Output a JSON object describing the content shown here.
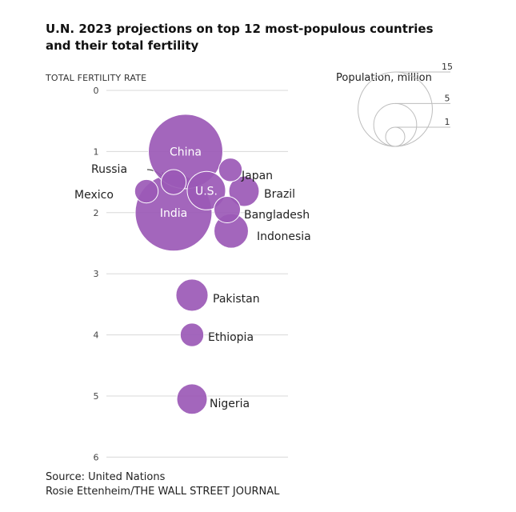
{
  "title": "U.N. 2023 projections on top 12 most-populous countries and their total fertility",
  "footer": {
    "source": "Source: United Nations",
    "credit": "Rosie Ettenheim/THE WALL STREET JOURNAL"
  },
  "chart_data": {
    "type": "scatter",
    "ylabel": "TOTAL FERTILITY RATE",
    "ylim": [
      0,
      6
    ],
    "yticks": [
      "0",
      "1",
      "2",
      "3",
      "4",
      "5",
      "6"
    ],
    "y_inverted": true,
    "grid": true,
    "bubble_color": "#9b59b6",
    "legend": {
      "title": "Population, million",
      "values": [
        15,
        5,
        1
      ],
      "labels": [
        "15",
        "5",
        "1"
      ]
    },
    "points": [
      {
        "country": "China",
        "fertility": 1.0,
        "size": 15.0,
        "label_inside": true
      },
      {
        "country": "India",
        "fertility": 2.0,
        "size": 16.0,
        "label_inside": true
      },
      {
        "country": "U.S.",
        "fertility": 1.64,
        "size": 4.0,
        "label_inside": true
      },
      {
        "country": "Russia",
        "fertility": 1.5,
        "size": 1.7
      },
      {
        "country": "Japan",
        "fertility": 1.3,
        "size": 1.5
      },
      {
        "country": "Mexico",
        "fertility": 1.65,
        "size": 1.5
      },
      {
        "country": "Brazil",
        "fertility": 1.65,
        "size": 2.5
      },
      {
        "country": "Bangladesh",
        "fertility": 1.95,
        "size": 1.9
      },
      {
        "country": "Indonesia",
        "fertility": 2.3,
        "size": 3.2
      },
      {
        "country": "Pakistan",
        "fertility": 3.35,
        "size": 2.8
      },
      {
        "country": "Ethiopia",
        "fertility": 4.0,
        "size": 1.5
      },
      {
        "country": "Nigeria",
        "fertility": 5.05,
        "size": 2.5
      }
    ]
  }
}
